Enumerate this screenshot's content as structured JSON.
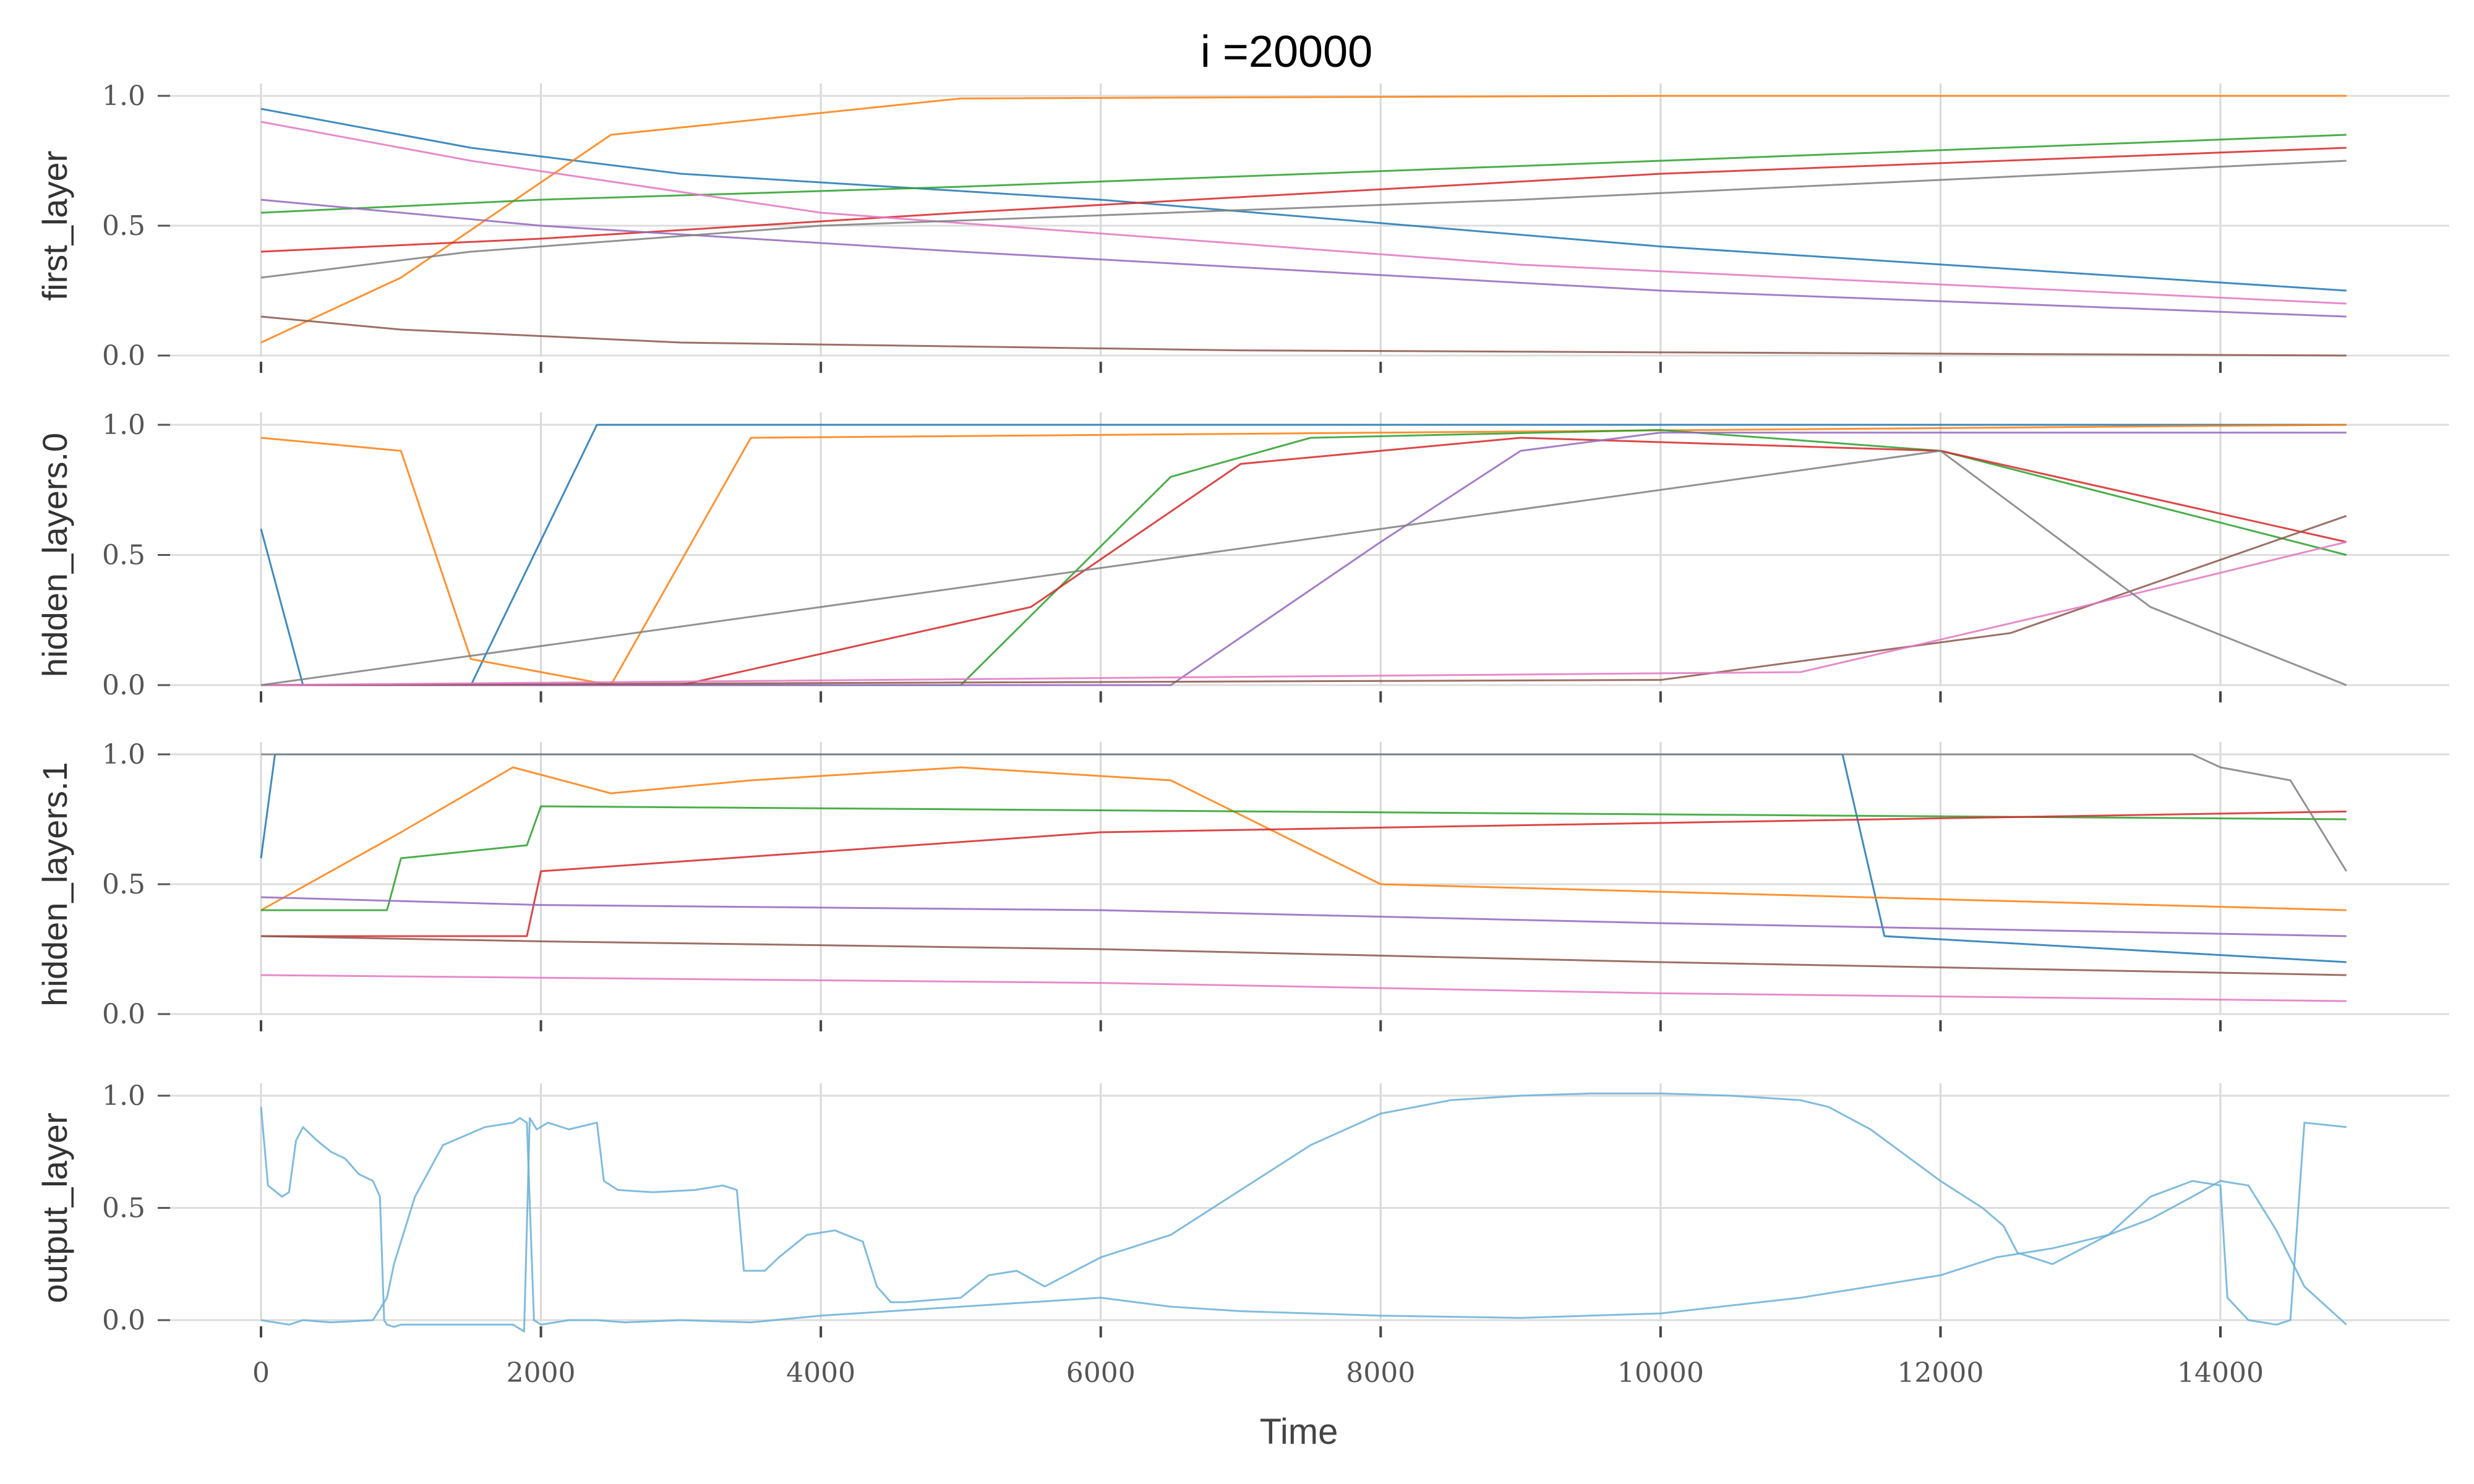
{
  "title": "i =20000",
  "xlabel": "Time",
  "colors": [
    "#1f77b4",
    "#ff7f0e",
    "#2ca02c",
    "#d62728",
    "#9467bd",
    "#8c564b",
    "#e377c2",
    "#7f7f7f",
    "#bcbd22",
    "#17becf"
  ],
  "chart_data": [
    {
      "type": "line",
      "ylabel": "first_layer",
      "xlim": [
        0,
        15000
      ],
      "ylim": [
        0,
        1
      ],
      "grid": true,
      "x_ticks": [
        0,
        2000,
        4000,
        6000,
        8000,
        10000,
        12000,
        14000
      ],
      "y_ticks": [
        0.0,
        0.5,
        1.0
      ],
      "y_tick_labels": [
        "0.0",
        "0.5",
        "1.0"
      ],
      "show_x_tick_labels": false,
      "series_note": "~220 overlapping unlabeled traces; shown as representative samples",
      "series": [
        {
          "x": [
            0,
            1500,
            3000,
            6000,
            10000,
            14900
          ],
          "values": [
            0.95,
            0.8,
            0.7,
            0.6,
            0.42,
            0.25
          ]
        },
        {
          "x": [
            0,
            1000,
            2500,
            5000,
            10000,
            14900
          ],
          "values": [
            0.05,
            0.3,
            0.85,
            0.99,
            1.0,
            1.0
          ]
        },
        {
          "x": [
            0,
            2000,
            5000,
            10000,
            14900
          ],
          "values": [
            0.55,
            0.6,
            0.65,
            0.75,
            0.85
          ]
        },
        {
          "x": [
            0,
            2000,
            5000,
            10000,
            14900
          ],
          "values": [
            0.4,
            0.45,
            0.55,
            0.7,
            0.8
          ]
        },
        {
          "x": [
            0,
            2000,
            5000,
            10000,
            14900
          ],
          "values": [
            0.6,
            0.5,
            0.4,
            0.25,
            0.15
          ]
        },
        {
          "x": [
            0,
            1000,
            3000,
            7000,
            14900
          ],
          "values": [
            0.15,
            0.1,
            0.05,
            0.02,
            0.0
          ]
        },
        {
          "x": [
            0,
            1500,
            4000,
            9000,
            14900
          ],
          "values": [
            0.9,
            0.75,
            0.55,
            0.35,
            0.2
          ]
        },
        {
          "x": [
            0,
            1500,
            4000,
            9000,
            14900
          ],
          "values": [
            0.3,
            0.4,
            0.5,
            0.6,
            0.75
          ]
        }
      ]
    },
    {
      "type": "line",
      "ylabel": "hidden_layers.0",
      "xlim": [
        0,
        15000
      ],
      "ylim": [
        0,
        1
      ],
      "grid": true,
      "x_ticks": [
        0,
        2000,
        4000,
        6000,
        8000,
        10000,
        12000,
        14000
      ],
      "y_ticks": [
        0.0,
        0.5,
        1.0
      ],
      "y_tick_labels": [
        "0.0",
        "0.5",
        "1.0"
      ],
      "show_x_tick_labels": false,
      "series_note": "~100 overlapping unlabeled traces; shown as representative samples",
      "series": [
        {
          "x": [
            0,
            300,
            1500,
            2400,
            4000,
            14900
          ],
          "values": [
            0.6,
            0.0,
            0.0,
            1.0,
            1.0,
            1.0
          ]
        },
        {
          "x": [
            0,
            1000,
            1500,
            2500,
            3500,
            14900
          ],
          "values": [
            0.95,
            0.9,
            0.1,
            0.0,
            0.95,
            1.0
          ]
        },
        {
          "x": [
            0,
            5000,
            6500,
            7500,
            10000,
            12000,
            14900
          ],
          "values": [
            0.0,
            0.0,
            0.8,
            0.95,
            0.98,
            0.9,
            0.5
          ]
        },
        {
          "x": [
            0,
            3000,
            5500,
            7000,
            9000,
            12000,
            14900
          ],
          "values": [
            0.0,
            0.0,
            0.3,
            0.85,
            0.95,
            0.9,
            0.55
          ]
        },
        {
          "x": [
            0,
            6500,
            8000,
            9000,
            10000,
            14900
          ],
          "values": [
            0.0,
            0.0,
            0.55,
            0.9,
            0.97,
            0.97
          ]
        },
        {
          "x": [
            0,
            10000,
            12500,
            14900
          ],
          "values": [
            0.0,
            0.02,
            0.2,
            0.65
          ]
        },
        {
          "x": [
            0,
            11000,
            13000,
            14900
          ],
          "values": [
            0.0,
            0.05,
            0.3,
            0.55
          ]
        },
        {
          "x": [
            0,
            12000,
            13500,
            14900
          ],
          "values": [
            0.0,
            0.9,
            0.3,
            0.0
          ]
        }
      ]
    },
    {
      "type": "line",
      "ylabel": "hidden_layers.1",
      "xlim": [
        0,
        15000
      ],
      "ylim": [
        0,
        1
      ],
      "grid": true,
      "x_ticks": [
        0,
        2000,
        4000,
        6000,
        8000,
        10000,
        12000,
        14000
      ],
      "y_ticks": [
        0.0,
        0.5,
        1.0
      ],
      "y_tick_labels": [
        "0.0",
        "0.5",
        "1.0"
      ],
      "show_x_tick_labels": false,
      "series_note": "~220 overlapping unlabeled traces; shown as representative samples",
      "series": [
        {
          "x": [
            0,
            100,
            11300,
            11600,
            14900
          ],
          "values": [
            0.6,
            1.0,
            1.0,
            0.3,
            0.2
          ]
        },
        {
          "x": [
            0,
            1000,
            1800,
            2500,
            3500,
            5000,
            6500,
            8000,
            14900
          ],
          "values": [
            0.4,
            0.7,
            0.95,
            0.85,
            0.9,
            0.95,
            0.9,
            0.5,
            0.4
          ]
        },
        {
          "x": [
            0,
            900,
            1000,
            1900,
            2000,
            14900
          ],
          "values": [
            0.4,
            0.4,
            0.6,
            0.65,
            0.8,
            0.75
          ]
        },
        {
          "x": [
            0,
            1900,
            2000,
            6000,
            14900
          ],
          "values": [
            0.3,
            0.3,
            0.55,
            0.7,
            0.78
          ]
        },
        {
          "x": [
            0,
            2000,
            6000,
            10000,
            14900
          ],
          "values": [
            0.45,
            0.42,
            0.4,
            0.35,
            0.3
          ]
        },
        {
          "x": [
            0,
            2000,
            6000,
            10000,
            14900
          ],
          "values": [
            0.3,
            0.28,
            0.25,
            0.2,
            0.15
          ]
        },
        {
          "x": [
            0,
            2000,
            6000,
            10000,
            14900
          ],
          "values": [
            0.15,
            0.14,
            0.12,
            0.08,
            0.05
          ]
        },
        {
          "x": [
            0,
            13800,
            14000,
            14500,
            14900
          ],
          "values": [
            1.0,
            1.0,
            0.95,
            0.9,
            0.55
          ]
        }
      ]
    },
    {
      "type": "line",
      "ylabel": "output_layer",
      "xlim": [
        0,
        15000
      ],
      "ylim": [
        0,
        1
      ],
      "grid": true,
      "x_ticks": [
        0,
        2000,
        4000,
        6000,
        8000,
        10000,
        12000,
        14000
      ],
      "x_tick_labels": [
        "0",
        "2000",
        "4000",
        "6000",
        "8000",
        "10000",
        "12000",
        "14000"
      ],
      "y_ticks": [
        0.0,
        0.5,
        1.0
      ],
      "y_tick_labels": [
        "0.0",
        "0.5",
        "1.0"
      ],
      "show_x_tick_labels": true,
      "series": [
        {
          "color": "#6ab0d8",
          "x": [
            0,
            50,
            150,
            200,
            250,
            300,
            400,
            500,
            600,
            700,
            800,
            850,
            880,
            900,
            950,
            1000,
            1200,
            1500,
            1800,
            1880,
            1920,
            1970,
            2050,
            2200,
            2400,
            2450,
            2550,
            2800,
            3100,
            3300,
            3400,
            3450,
            3600,
            3700,
            3900,
            4100,
            4300,
            4400,
            4500,
            4600,
            5000,
            5200,
            5400,
            5600,
            6000,
            6500,
            7000,
            7500,
            8000,
            8500,
            9000,
            9500,
            10000,
            10500,
            11000,
            11200,
            11500,
            12000,
            12300,
            12450,
            12550,
            12800,
            13200,
            13500,
            13800,
            14000,
            14050,
            14200,
            14400,
            14500,
            14600,
            14900
          ],
          "values": [
            0.95,
            0.6,
            0.55,
            0.57,
            0.8,
            0.86,
            0.8,
            0.75,
            0.72,
            0.65,
            0.62,
            0.55,
            0.0,
            -0.02,
            -0.03,
            -0.02,
            -0.02,
            -0.02,
            -0.02,
            -0.05,
            0.9,
            0.85,
            0.88,
            0.85,
            0.88,
            0.62,
            0.58,
            0.57,
            0.58,
            0.6,
            0.58,
            0.22,
            0.22,
            0.28,
            0.38,
            0.4,
            0.35,
            0.15,
            0.08,
            0.08,
            0.1,
            0.2,
            0.22,
            0.15,
            0.28,
            0.38,
            0.58,
            0.78,
            0.92,
            0.98,
            1.0,
            1.01,
            1.01,
            1.0,
            0.98,
            0.95,
            0.85,
            0.62,
            0.5,
            0.42,
            0.3,
            0.25,
            0.38,
            0.55,
            0.62,
            0.6,
            0.1,
            0.0,
            -0.02,
            0.0,
            0.88,
            0.86
          ]
        },
        {
          "color": "#6ab0d8",
          "x": [
            0,
            100,
            200,
            300,
            500,
            800,
            900,
            950,
            1100,
            1300,
            1600,
            1800,
            1850,
            1900,
            1950,
            2000,
            2200,
            2400,
            2600,
            3000,
            3500,
            4000,
            4500,
            5000,
            5500,
            6000,
            6500,
            7000,
            8000,
            9000,
            10000,
            11000,
            11500,
            12000,
            12400,
            12800,
            13200,
            13500,
            13800,
            14000,
            14200,
            14400,
            14600,
            14900
          ],
          "values": [
            0.0,
            -0.01,
            -0.02,
            0.0,
            -0.01,
            0.0,
            0.1,
            0.25,
            0.55,
            0.78,
            0.86,
            0.88,
            0.9,
            0.88,
            0.0,
            -0.02,
            0.0,
            0.0,
            -0.01,
            0.0,
            -0.01,
            0.02,
            0.04,
            0.06,
            0.08,
            0.1,
            0.06,
            0.04,
            0.02,
            0.01,
            0.03,
            0.1,
            0.15,
            0.2,
            0.28,
            0.32,
            0.38,
            0.45,
            0.55,
            0.62,
            0.6,
            0.4,
            0.15,
            -0.02
          ]
        }
      ]
    }
  ]
}
